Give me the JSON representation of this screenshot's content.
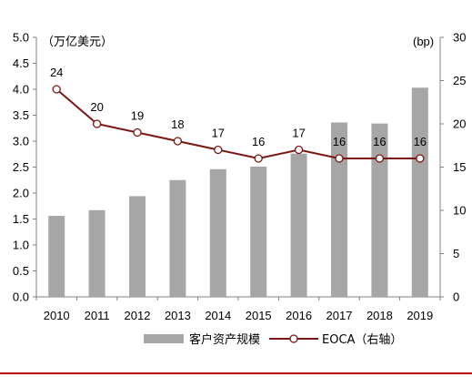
{
  "chart_data": {
    "type": "bar",
    "categories": [
      "2010",
      "2011",
      "2012",
      "2013",
      "2014",
      "2015",
      "2016",
      "2017",
      "2018",
      "2019"
    ],
    "series": [
      {
        "name": "客户资产规模",
        "type": "bar",
        "axis": "left",
        "values": [
          1.56,
          1.67,
          1.94,
          2.25,
          2.46,
          2.51,
          2.76,
          3.36,
          3.34,
          4.03
        ]
      },
      {
        "name": "EOCA（右轴）",
        "type": "line",
        "axis": "right",
        "values": [
          24,
          20,
          19,
          18,
          17,
          16,
          17,
          16,
          16,
          16
        ]
      }
    ],
    "left_axis": {
      "unit": "（万亿美元）",
      "ylim": [
        0,
        5.0
      ],
      "ticks": [
        "0.0",
        "0.5",
        "1.0",
        "1.5",
        "2.0",
        "2.5",
        "3.0",
        "3.5",
        "4.0",
        "4.5",
        "5.0"
      ]
    },
    "right_axis": {
      "unit": "(bp)",
      "ylim": [
        0,
        30
      ],
      "ticks": [
        "0",
        "5",
        "10",
        "15",
        "20",
        "25",
        "30"
      ]
    },
    "data_labels": [
      "24",
      "20",
      "19",
      "18",
      "17",
      "16",
      "17",
      "16",
      "16",
      "16"
    ],
    "legend_position": "bottom",
    "grid": false,
    "colors": {
      "bar": "#a6a6a6",
      "line": "#7b1712",
      "marker_fill": "#ffffff",
      "axis": "#808080",
      "bottom_rule": "#c00000"
    }
  }
}
